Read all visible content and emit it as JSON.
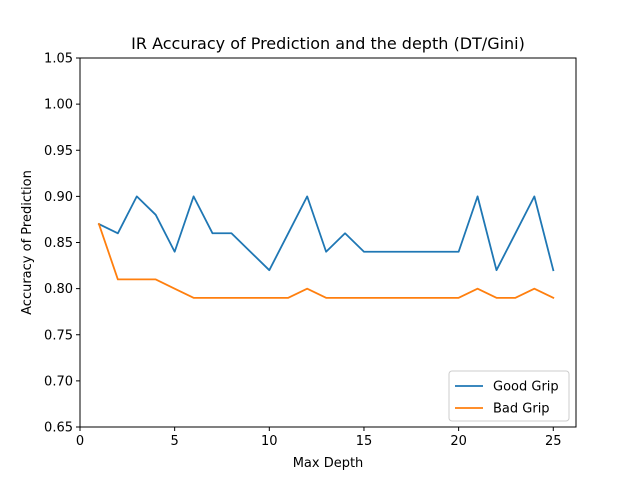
{
  "chart_data": {
    "type": "line",
    "title": "IR Accuracy of Prediction and the depth (DT/Gini)",
    "xlabel": "Max Depth",
    "ylabel": "Accuracy of Prediction",
    "xlim": [
      0,
      26.2
    ],
    "ylim": [
      0.65,
      1.05
    ],
    "xticks": [
      0,
      5,
      10,
      15,
      20,
      25
    ],
    "xtick_labels": [
      "0",
      "5",
      "10",
      "15",
      "20",
      "25"
    ],
    "yticks": [
      0.65,
      0.7,
      0.75,
      0.8,
      0.85,
      0.9,
      0.95,
      1.0,
      1.05
    ],
    "ytick_labels": [
      "0.65",
      "0.70",
      "0.75",
      "0.80",
      "0.85",
      "0.90",
      "0.95",
      "1.00",
      "1.05"
    ],
    "grid": false,
    "legend_position": "lower-right",
    "x": [
      1,
      2,
      3,
      4,
      5,
      6,
      7,
      8,
      9,
      10,
      11,
      12,
      13,
      14,
      15,
      16,
      17,
      18,
      19,
      20,
      21,
      22,
      23,
      24,
      25
    ],
    "series": [
      {
        "name": "Good Grip",
        "color": "#1f77b4",
        "values": [
          0.87,
          0.86,
          0.9,
          0.88,
          0.84,
          0.9,
          0.86,
          0.86,
          0.84,
          0.82,
          0.86,
          0.9,
          0.84,
          0.86,
          0.84,
          0.84,
          0.84,
          0.84,
          0.84,
          0.84,
          0.9,
          0.82,
          0.86,
          0.9,
          0.82
        ]
      },
      {
        "name": "Bad Grip",
        "color": "#ff7f0e",
        "values": [
          0.87,
          0.81,
          0.81,
          0.81,
          0.8,
          0.79,
          0.79,
          0.79,
          0.79,
          0.79,
          0.79,
          0.8,
          0.79,
          0.79,
          0.79,
          0.79,
          0.79,
          0.79,
          0.79,
          0.79,
          0.8,
          0.79,
          0.79,
          0.8,
          0.79
        ]
      }
    ]
  }
}
